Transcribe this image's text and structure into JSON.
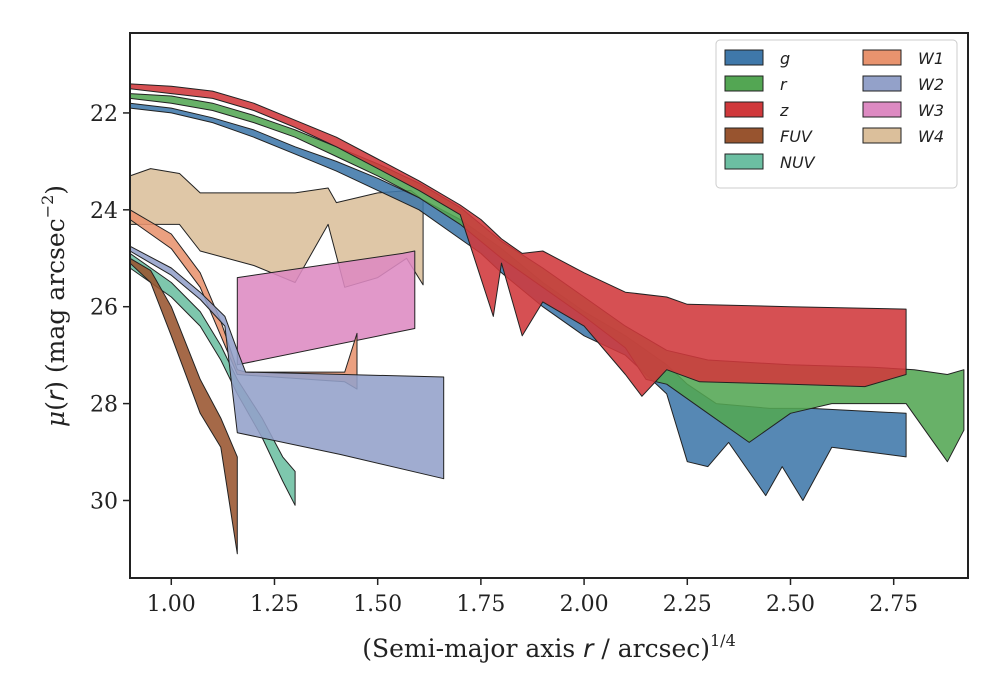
{
  "chart_data": {
    "type": "area",
    "title": "",
    "xlabel": "(Semi-major axis r / arcsec)^(1/4)",
    "ylabel": "μ(r) (mag arcsec^-2)",
    "xlim": [
      0.9,
      2.93
    ],
    "ylim": [
      31.6,
      20.35
    ],
    "y_inverted": true,
    "grid": false,
    "legend_position": "top-right",
    "x_ticks": [
      1.0,
      1.25,
      1.5,
      1.75,
      2.0,
      2.25,
      2.5,
      2.75
    ],
    "x_tick_labels": [
      "1.00",
      "1.25",
      "1.50",
      "1.75",
      "2.00",
      "2.25",
      "2.50",
      "2.75"
    ],
    "y_ticks": [
      22,
      24,
      26,
      28,
      30
    ],
    "y_tick_labels": [
      "22",
      "24",
      "26",
      "28",
      "30"
    ],
    "series": [
      {
        "name": "W4",
        "color": "#dbbf9b",
        "upper": [
          [
            0.9,
            23.3
          ],
          [
            0.95,
            23.15
          ],
          [
            1.02,
            23.25
          ],
          [
            1.07,
            23.65
          ],
          [
            1.2,
            23.65
          ],
          [
            1.3,
            23.65
          ],
          [
            1.38,
            23.55
          ],
          [
            1.4,
            23.85
          ],
          [
            1.5,
            23.65
          ],
          [
            1.58,
            23.6
          ],
          [
            1.61,
            23.8
          ]
        ],
        "lower": [
          [
            0.9,
            24.3
          ],
          [
            0.95,
            24.3
          ],
          [
            1.02,
            24.3
          ],
          [
            1.07,
            24.85
          ],
          [
            1.2,
            25.15
          ],
          [
            1.3,
            25.5
          ],
          [
            1.38,
            24.3
          ],
          [
            1.42,
            25.6
          ],
          [
            1.5,
            25.4
          ],
          [
            1.57,
            25.0
          ],
          [
            1.61,
            25.55
          ]
        ]
      },
      {
        "name": "W3",
        "color": "#dd8ac2",
        "upper": [
          [
            1.16,
            25.4
          ],
          [
            1.56,
            24.9
          ],
          [
            1.59,
            24.85
          ]
        ],
        "lower": [
          [
            1.16,
            27.2
          ],
          [
            1.59,
            26.45
          ]
        ]
      },
      {
        "name": "W1",
        "color": "#e8936e",
        "upper": [
          [
            0.9,
            24.0
          ],
          [
            1.0,
            24.5
          ],
          [
            1.07,
            25.3
          ],
          [
            1.12,
            26.3
          ],
          [
            1.16,
            27.3
          ],
          [
            1.18,
            27.35
          ],
          [
            1.42,
            27.35
          ],
          [
            1.45,
            26.55
          ]
        ],
        "lower": [
          [
            0.9,
            24.2
          ],
          [
            1.0,
            24.8
          ],
          [
            1.07,
            25.6
          ],
          [
            1.12,
            26.6
          ],
          [
            1.16,
            27.4
          ],
          [
            1.42,
            27.55
          ],
          [
            1.45,
            27.7
          ]
        ]
      },
      {
        "name": "NUV",
        "color": "#6cbfa2",
        "upper": [
          [
            0.9,
            24.9
          ],
          [
            1.0,
            25.5
          ],
          [
            1.07,
            26.1
          ],
          [
            1.12,
            26.8
          ],
          [
            1.16,
            27.5
          ],
          [
            1.22,
            28.3
          ],
          [
            1.27,
            29.1
          ],
          [
            1.3,
            29.4
          ]
        ],
        "lower": [
          [
            0.9,
            25.2
          ],
          [
            1.0,
            25.8
          ],
          [
            1.07,
            26.4
          ],
          [
            1.12,
            27.1
          ],
          [
            1.16,
            27.8
          ],
          [
            1.22,
            28.7
          ],
          [
            1.27,
            29.6
          ],
          [
            1.3,
            30.1
          ]
        ]
      },
      {
        "name": "FUV",
        "color": "#98542f",
        "upper": [
          [
            0.9,
            25.0
          ],
          [
            0.95,
            25.25
          ],
          [
            1.0,
            26.0
          ],
          [
            1.07,
            27.5
          ],
          [
            1.12,
            28.3
          ],
          [
            1.16,
            29.1
          ]
        ],
        "lower": [
          [
            0.9,
            25.1
          ],
          [
            0.95,
            25.5
          ],
          [
            1.0,
            26.6
          ],
          [
            1.07,
            28.2
          ],
          [
            1.12,
            28.9
          ],
          [
            1.16,
            31.1
          ]
        ]
      },
      {
        "name": "W2",
        "color": "#93a1c9",
        "upper": [
          [
            0.9,
            24.75
          ],
          [
            1.0,
            25.2
          ],
          [
            1.07,
            25.7
          ],
          [
            1.13,
            26.2
          ],
          [
            1.16,
            26.9
          ],
          [
            1.18,
            27.35
          ],
          [
            1.42,
            27.4
          ],
          [
            1.66,
            27.45
          ]
        ],
        "lower": [
          [
            0.9,
            24.85
          ],
          [
            1.0,
            25.35
          ],
          [
            1.07,
            25.85
          ],
          [
            1.13,
            26.4
          ],
          [
            1.16,
            28.6
          ],
          [
            1.41,
            29.05
          ],
          [
            1.66,
            29.55
          ]
        ]
      },
      {
        "name": "g",
        "color": "#3f78aa",
        "upper": [
          [
            0.9,
            21.8
          ],
          [
            1.0,
            21.9
          ],
          [
            1.1,
            22.1
          ],
          [
            1.2,
            22.35
          ],
          [
            1.3,
            22.7
          ],
          [
            1.4,
            23.0
          ],
          [
            1.5,
            23.35
          ],
          [
            1.6,
            23.75
          ],
          [
            1.7,
            24.2
          ],
          [
            1.75,
            24.5
          ],
          [
            1.8,
            24.8
          ],
          [
            1.9,
            25.5
          ],
          [
            2.0,
            26.1
          ],
          [
            2.1,
            26.6
          ],
          [
            2.2,
            27.2
          ],
          [
            2.25,
            27.6
          ],
          [
            2.32,
            28.0
          ],
          [
            2.45,
            28.1
          ],
          [
            2.55,
            28.1
          ],
          [
            2.78,
            28.2
          ]
        ],
        "lower": [
          [
            0.9,
            21.9
          ],
          [
            1.0,
            22.0
          ],
          [
            1.1,
            22.2
          ],
          [
            1.2,
            22.5
          ],
          [
            1.3,
            22.85
          ],
          [
            1.4,
            23.2
          ],
          [
            1.5,
            23.6
          ],
          [
            1.6,
            24.0
          ],
          [
            1.7,
            24.6
          ],
          [
            1.75,
            24.9
          ],
          [
            1.8,
            25.3
          ],
          [
            1.9,
            26.0
          ],
          [
            2.0,
            26.6
          ],
          [
            2.1,
            27.0
          ],
          [
            2.2,
            27.8
          ],
          [
            2.25,
            29.2
          ],
          [
            2.3,
            29.3
          ],
          [
            2.35,
            28.8
          ],
          [
            2.44,
            29.9
          ],
          [
            2.48,
            29.3
          ],
          [
            2.53,
            30.0
          ],
          [
            2.6,
            28.9
          ],
          [
            2.78,
            29.1
          ]
        ]
      },
      {
        "name": "r",
        "color": "#53a653",
        "upper": [
          [
            0.9,
            21.6
          ],
          [
            1.0,
            21.65
          ],
          [
            1.1,
            21.8
          ],
          [
            1.2,
            22.05
          ],
          [
            1.3,
            22.35
          ],
          [
            1.4,
            22.7
          ],
          [
            1.5,
            23.05
          ],
          [
            1.6,
            23.45
          ],
          [
            1.7,
            23.95
          ],
          [
            1.8,
            24.65
          ],
          [
            1.9,
            25.2
          ],
          [
            2.0,
            25.8
          ],
          [
            2.1,
            26.4
          ],
          [
            2.2,
            26.9
          ],
          [
            2.3,
            27.1
          ],
          [
            2.5,
            27.2
          ],
          [
            2.7,
            27.25
          ],
          [
            2.8,
            27.3
          ],
          [
            2.88,
            27.4
          ],
          [
            2.92,
            27.3
          ]
        ],
        "lower": [
          [
            0.9,
            21.7
          ],
          [
            1.0,
            21.8
          ],
          [
            1.1,
            21.95
          ],
          [
            1.2,
            22.2
          ],
          [
            1.3,
            22.5
          ],
          [
            1.4,
            22.9
          ],
          [
            1.5,
            23.3
          ],
          [
            1.6,
            23.75
          ],
          [
            1.7,
            24.3
          ],
          [
            1.8,
            25.0
          ],
          [
            1.9,
            25.6
          ],
          [
            2.0,
            26.2
          ],
          [
            2.1,
            26.85
          ],
          [
            2.15,
            27.5
          ],
          [
            2.2,
            27.6
          ],
          [
            2.3,
            28.2
          ],
          [
            2.4,
            28.8
          ],
          [
            2.5,
            28.2
          ],
          [
            2.6,
            28.0
          ],
          [
            2.78,
            28.0
          ],
          [
            2.88,
            29.2
          ],
          [
            2.92,
            28.55
          ]
        ]
      },
      {
        "name": "z",
        "color": "#d0383b",
        "upper": [
          [
            0.9,
            21.4
          ],
          [
            1.0,
            21.45
          ],
          [
            1.1,
            21.55
          ],
          [
            1.2,
            21.8
          ],
          [
            1.3,
            22.15
          ],
          [
            1.4,
            22.5
          ],
          [
            1.5,
            22.95
          ],
          [
            1.6,
            23.4
          ],
          [
            1.7,
            23.9
          ],
          [
            1.75,
            24.2
          ],
          [
            1.8,
            24.6
          ],
          [
            1.85,
            24.9
          ],
          [
            1.9,
            24.85
          ],
          [
            2.0,
            25.3
          ],
          [
            2.1,
            25.7
          ],
          [
            2.2,
            25.8
          ],
          [
            2.25,
            25.95
          ],
          [
            2.5,
            26.0
          ],
          [
            2.78,
            26.05
          ]
        ],
        "lower": [
          [
            0.9,
            21.5
          ],
          [
            1.0,
            21.6
          ],
          [
            1.1,
            21.7
          ],
          [
            1.2,
            21.95
          ],
          [
            1.3,
            22.3
          ],
          [
            1.4,
            22.7
          ],
          [
            1.5,
            23.15
          ],
          [
            1.6,
            23.6
          ],
          [
            1.7,
            24.1
          ],
          [
            1.78,
            26.2
          ],
          [
            1.8,
            25.1
          ],
          [
            1.85,
            26.6
          ],
          [
            1.9,
            25.9
          ],
          [
            2.0,
            26.4
          ],
          [
            2.1,
            27.4
          ],
          [
            2.14,
            27.85
          ],
          [
            2.2,
            27.3
          ],
          [
            2.28,
            27.55
          ],
          [
            2.5,
            27.6
          ],
          [
            2.68,
            27.65
          ],
          [
            2.78,
            27.4
          ]
        ]
      }
    ],
    "legend": [
      {
        "name": "g",
        "color": "#3f78aa"
      },
      {
        "name": "r",
        "color": "#53a653"
      },
      {
        "name": "z",
        "color": "#d0383b"
      },
      {
        "name": "FUV",
        "color": "#98542f"
      },
      {
        "name": "NUV",
        "color": "#6cbfa2"
      },
      {
        "name": "W1",
        "color": "#e8936e"
      },
      {
        "name": "W2",
        "color": "#93a1c9"
      },
      {
        "name": "W3",
        "color": "#dd8ac2"
      },
      {
        "name": "W4",
        "color": "#dbbf9b"
      }
    ]
  }
}
